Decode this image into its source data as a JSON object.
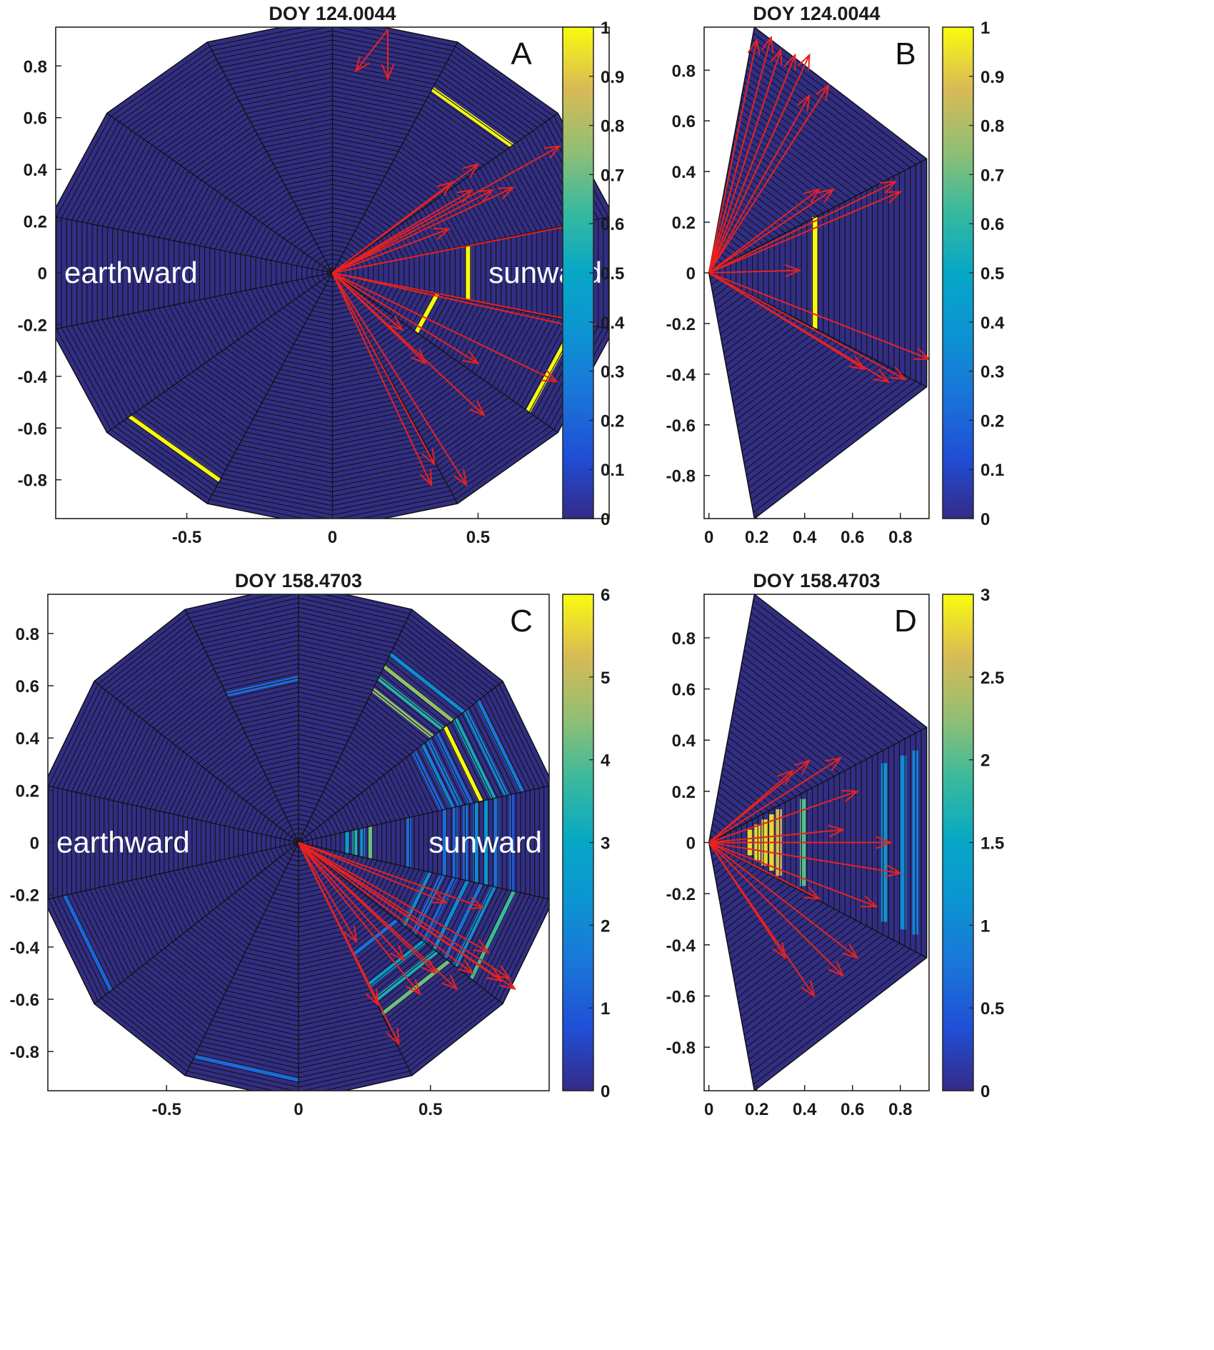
{
  "chart_data": [
    {
      "panel": "A",
      "type": "heatmap",
      "title": "DOY 124.0044",
      "panel_label": "A",
      "geometry": "polar-14-sector",
      "xlim": [
        -0.95,
        0.95
      ],
      "ylim": [
        -0.95,
        0.95
      ],
      "xticks": [
        -0.5,
        0,
        0.5
      ],
      "xtick_labels": [
        "-0.5",
        "0",
        "0.5"
      ],
      "yticks": [
        0.8,
        0.6,
        0.4,
        0.2,
        0,
        -0.2,
        -0.4,
        -0.6,
        -0.8
      ],
      "ytick_labels": [
        "0.8",
        "0.6",
        "0.4",
        "0.2",
        "0",
        "-0.2",
        "-0.4",
        "-0.6",
        "-0.8"
      ],
      "colorbar": {
        "min": 0,
        "max": 1,
        "ticks": [
          0,
          0.1,
          0.2,
          0.3,
          0.4,
          0.5,
          0.6,
          0.7,
          0.8,
          0.9,
          1
        ],
        "tick_labels": [
          "0",
          "0.1",
          "0.2",
          "0.3",
          "0.4",
          "0.5",
          "0.6",
          "0.7",
          "0.8",
          "0.9",
          "1"
        ]
      },
      "annotations": [
        "earthward",
        "sunward"
      ],
      "highlighted_cells": [
        {
          "sector": 2,
          "r": 0.78,
          "value": 1
        },
        {
          "sector": 0,
          "r": 0.47,
          "value": 1
        },
        {
          "sector": 13,
          "r": 0.36,
          "value": 1
        },
        {
          "sector": 13,
          "r": 0.85,
          "value": 1
        },
        {
          "sector": 9,
          "r": 0.88,
          "value": 1
        }
      ],
      "vectors": [
        {
          "tail": [
            0.19,
            0.94
          ],
          "head": [
            0.08,
            0.78
          ]
        },
        {
          "tail": [
            0.19,
            0.94
          ],
          "head": [
            0.19,
            0.75
          ]
        },
        {
          "tail": [
            0,
            0
          ],
          "head": [
            0.41,
            0.35
          ]
        },
        {
          "tail": [
            0,
            0
          ],
          "head": [
            0.5,
            0.42
          ]
        },
        {
          "tail": [
            0,
            0
          ],
          "head": [
            0.55,
            0.32
          ]
        },
        {
          "tail": [
            0,
            0
          ],
          "head": [
            0.62,
            0.33
          ]
        },
        {
          "tail": [
            0,
            0
          ],
          "head": [
            0.78,
            0.49
          ]
        },
        {
          "tail": [
            0,
            0
          ],
          "head": [
            0.85,
            0.19
          ]
        },
        {
          "tail": [
            0,
            0
          ],
          "head": [
            0.48,
            0.32
          ]
        },
        {
          "tail": [
            0,
            0
          ],
          "head": [
            0.4,
            0.17
          ]
        },
        {
          "tail": [
            0,
            0
          ],
          "head": [
            0.9,
            -0.2
          ]
        },
        {
          "tail": [
            0,
            0
          ],
          "head": [
            0.84,
            -0.21
          ]
        },
        {
          "tail": [
            0,
            0
          ],
          "head": [
            0.77,
            -0.42
          ]
        },
        {
          "tail": [
            0,
            0
          ],
          "head": [
            0.52,
            -0.55
          ]
        },
        {
          "tail": [
            0,
            0
          ],
          "head": [
            0.35,
            -0.74
          ]
        },
        {
          "tail": [
            0,
            0
          ],
          "head": [
            0.46,
            -0.82
          ]
        },
        {
          "tail": [
            0,
            0
          ],
          "head": [
            0.34,
            -0.82
          ]
        },
        {
          "tail": [
            0,
            0
          ],
          "head": [
            0.32,
            -0.35
          ]
        },
        {
          "tail": [
            0,
            0
          ],
          "head": [
            0.24,
            -0.22
          ]
        },
        {
          "tail": [
            0,
            0
          ],
          "head": [
            0.5,
            -0.35
          ]
        }
      ]
    },
    {
      "panel": "B",
      "type": "heatmap",
      "title": "DOY 124.0044",
      "panel_label": "B",
      "geometry": "sector-wedge",
      "xlim": [
        -0.02,
        0.92
      ],
      "ylim": [
        -0.97,
        0.97
      ],
      "xticks": [
        0,
        0.2,
        0.4,
        0.6,
        0.8
      ],
      "xtick_labels": [
        "0",
        "0.2",
        "0.4",
        "0.6",
        "0.8"
      ],
      "yticks": [
        0.8,
        0.6,
        0.4,
        0.2,
        0,
        -0.2,
        -0.4,
        -0.6,
        -0.8
      ],
      "ytick_labels": [
        "0.8",
        "0.6",
        "0.4",
        "0.2",
        "0",
        "-0.2",
        "-0.4",
        "-0.6",
        "-0.8"
      ],
      "colorbar": {
        "min": 0,
        "max": 1,
        "ticks": [
          0,
          0.1,
          0.2,
          0.3,
          0.4,
          0.5,
          0.6,
          0.7,
          0.8,
          0.9,
          1
        ],
        "tick_labels": [
          "0",
          "0.1",
          "0.2",
          "0.3",
          "0.4",
          "0.5",
          "0.6",
          "0.7",
          "0.8",
          "0.9",
          "1"
        ]
      },
      "highlighted_cells": [
        {
          "x": 0.43,
          "y_from": -0.22,
          "y_to": 0.22,
          "value": 1
        }
      ],
      "vectors": [
        {
          "tail": [
            0,
            0
          ],
          "head": [
            0.2,
            0.92
          ]
        },
        {
          "tail": [
            0,
            0
          ],
          "head": [
            0.26,
            0.93
          ]
        },
        {
          "tail": [
            0,
            0
          ],
          "head": [
            0.3,
            0.88
          ]
        },
        {
          "tail": [
            0,
            0
          ],
          "head": [
            0.36,
            0.86
          ]
        },
        {
          "tail": [
            0,
            0
          ],
          "head": [
            0.42,
            0.86
          ]
        },
        {
          "tail": [
            0,
            0
          ],
          "head": [
            0.5,
            0.74
          ]
        },
        {
          "tail": [
            0,
            0
          ],
          "head": [
            0.42,
            0.7
          ]
        },
        {
          "tail": [
            0,
            0
          ],
          "head": [
            0.46,
            0.33
          ]
        },
        {
          "tail": [
            0,
            0
          ],
          "head": [
            0.52,
            0.33
          ]
        },
        {
          "tail": [
            0,
            0
          ],
          "head": [
            0.78,
            0.36
          ]
        },
        {
          "tail": [
            0,
            0
          ],
          "head": [
            0.8,
            0.32
          ]
        },
        {
          "tail": [
            0,
            0
          ],
          "head": [
            0.38,
            0.01
          ]
        },
        {
          "tail": [
            0,
            0
          ],
          "head": [
            0.92,
            -0.34
          ]
        },
        {
          "tail": [
            0,
            0
          ],
          "head": [
            0.75,
            -0.43
          ]
        },
        {
          "tail": [
            0,
            0
          ],
          "head": [
            0.65,
            -0.38
          ]
        },
        {
          "tail": [
            0,
            0
          ],
          "head": [
            0.82,
            -0.42
          ]
        }
      ]
    },
    {
      "panel": "C",
      "type": "heatmap",
      "title": "DOY 158.4703",
      "panel_label": "C",
      "geometry": "polar-14-sector",
      "xlim": [
        -0.95,
        0.95
      ],
      "ylim": [
        -0.95,
        0.95
      ],
      "xticks": [
        -0.5,
        0,
        0.5
      ],
      "xtick_labels": [
        "-0.5",
        "0",
        "0.5"
      ],
      "yticks": [
        0.8,
        0.6,
        0.4,
        0.2,
        0,
        -0.2,
        -0.4,
        -0.6,
        -0.8
      ],
      "ytick_labels": [
        "0.8",
        "0.6",
        "0.4",
        "0.2",
        "0",
        "-0.2",
        "-0.4",
        "-0.6",
        "-0.8"
      ],
      "colorbar": {
        "min": 0,
        "max": 6,
        "ticks": [
          0,
          1,
          2,
          3,
          4,
          5,
          6
        ],
        "tick_labels": [
          "0",
          "1",
          "2",
          "3",
          "4",
          "5",
          "6"
        ]
      },
      "annotations": [
        "earthward",
        "sunward"
      ],
      "highlighted_cells": [
        {
          "sector": 0,
          "r": 0.18,
          "value": 2.5
        },
        {
          "sector": 0,
          "r": 0.21,
          "value": 3.5
        },
        {
          "sector": 0,
          "r": 0.24,
          "value": 2.2
        },
        {
          "sector": 0,
          "r": 0.27,
          "value": 4.2
        },
        {
          "sector": 0,
          "r": 0.42,
          "value": 1.4
        },
        {
          "sector": 0,
          "r": 0.56,
          "value": 1.3
        },
        {
          "sector": 0,
          "r": 0.6,
          "value": 1.3
        },
        {
          "sector": 0,
          "r": 0.64,
          "value": 1.4
        },
        {
          "sector": 0,
          "r": 0.68,
          "value": 2.0
        },
        {
          "sector": 0,
          "r": 0.72,
          "value": 2.3
        },
        {
          "sector": 0,
          "r": 0.76,
          "value": 1.4
        },
        {
          "sector": 0,
          "r": 0.82,
          "value": 1.0
        },
        {
          "sector": 1,
          "r": 0.55,
          "value": 1.2
        },
        {
          "sector": 1,
          "r": 0.59,
          "value": 1.8
        },
        {
          "sector": 1,
          "r": 0.62,
          "value": 1.6
        },
        {
          "sector": 1,
          "r": 0.66,
          "value": 1.3
        },
        {
          "sector": 1,
          "r": 0.7,
          "value": 6
        },
        {
          "sector": 1,
          "r": 0.75,
          "value": 3.2
        },
        {
          "sector": 1,
          "r": 0.8,
          "value": 2.0
        },
        {
          "sector": 1,
          "r": 0.86,
          "value": 1.6
        },
        {
          "sector": 2,
          "r": 0.64,
          "value": 4.5
        },
        {
          "sector": 2,
          "r": 0.69,
          "value": 3.5
        },
        {
          "sector": 2,
          "r": 0.74,
          "value": 4.5
        },
        {
          "sector": 2,
          "r": 0.79,
          "value": 2.0
        },
        {
          "sector": 13,
          "r": 0.5,
          "value": 2.0
        },
        {
          "sector": 13,
          "r": 0.55,
          "value": 1.4
        },
        {
          "sector": 13,
          "r": 0.6,
          "value": 1.2
        },
        {
          "sector": 13,
          "r": 0.65,
          "value": 2.0
        },
        {
          "sector": 13,
          "r": 0.7,
          "value": 1.4
        },
        {
          "sector": 13,
          "r": 0.75,
          "value": 2.2
        },
        {
          "sector": 13,
          "r": 0.83,
          "value": 3.8
        },
        {
          "sector": 12,
          "r": 0.6,
          "value": 2.8
        },
        {
          "sector": 12,
          "r": 0.66,
          "value": 3.3
        },
        {
          "sector": 12,
          "r": 0.72,
          "value": 4.2
        },
        {
          "sector": 12,
          "r": 0.47,
          "value": 1.4
        },
        {
          "sector": 4,
          "r": 0.62,
          "value": 1.4
        },
        {
          "sector": 10,
          "r": 0.9,
          "value": 1.3
        },
        {
          "sector": 8,
          "r": 0.9,
          "value": 1.2
        }
      ],
      "vectors": [
        {
          "tail": [
            0,
            0
          ],
          "head": [
            0.56,
            -0.23
          ]
        },
        {
          "tail": [
            0,
            0
          ],
          "head": [
            0.7,
            -0.25
          ]
        },
        {
          "tail": [
            0,
            0
          ],
          "head": [
            0.82,
            -0.56
          ]
        },
        {
          "tail": [
            0,
            0
          ],
          "head": [
            0.77,
            -0.53
          ]
        },
        {
          "tail": [
            0,
            0
          ],
          "head": [
            0.66,
            -0.5
          ]
        },
        {
          "tail": [
            0,
            0
          ],
          "head": [
            0.6,
            -0.56
          ]
        },
        {
          "tail": [
            0,
            0
          ],
          "head": [
            0.52,
            -0.5
          ]
        },
        {
          "tail": [
            0,
            0
          ],
          "head": [
            0.46,
            -0.58
          ]
        },
        {
          "tail": [
            0,
            0
          ],
          "head": [
            0.38,
            -0.77
          ]
        },
        {
          "tail": [
            0,
            0
          ],
          "head": [
            0.3,
            -0.62
          ]
        },
        {
          "tail": [
            0,
            0
          ],
          "head": [
            0.22,
            -0.38
          ]
        },
        {
          "tail": [
            0,
            0
          ],
          "head": [
            0.4,
            -0.45
          ]
        },
        {
          "tail": [
            0,
            0
          ],
          "head": [
            0.72,
            -0.42
          ]
        },
        {
          "tail": [
            0,
            0
          ],
          "head": [
            0.8,
            -0.52
          ]
        }
      ]
    },
    {
      "panel": "D",
      "type": "heatmap",
      "title": "DOY 158.4703",
      "panel_label": "D",
      "geometry": "sector-wedge",
      "xlim": [
        -0.02,
        0.92
      ],
      "ylim": [
        -0.97,
        0.97
      ],
      "xticks": [
        0,
        0.2,
        0.4,
        0.6,
        0.8
      ],
      "xtick_labels": [
        "0",
        "0.2",
        "0.4",
        "0.6",
        "0.8"
      ],
      "yticks": [
        0.8,
        0.6,
        0.4,
        0.2,
        0,
        -0.2,
        -0.4,
        -0.6,
        -0.8
      ],
      "ytick_labels": [
        "0.8",
        "0.6",
        "0.4",
        "0.2",
        "0",
        "-0.2",
        "-0.4",
        "-0.6",
        "-0.8"
      ],
      "colorbar": {
        "min": 0,
        "max": 3,
        "ticks": [
          0,
          0.5,
          1,
          1.5,
          2,
          2.5,
          3
        ],
        "tick_labels": [
          "0",
          "0.5",
          "1",
          "1.5",
          "2",
          "2.5",
          "3"
        ]
      },
      "highlighted_cells": [
        {
          "x": 0.16,
          "y_from": -0.05,
          "y_to": 0.05,
          "value": 2.8
        },
        {
          "x": 0.19,
          "y_from": -0.07,
          "y_to": 0.07,
          "value": 2.8
        },
        {
          "x": 0.22,
          "y_from": -0.09,
          "y_to": 0.09,
          "value": 2.8
        },
        {
          "x": 0.25,
          "y_from": -0.11,
          "y_to": 0.11,
          "value": 2.8
        },
        {
          "x": 0.28,
          "y_from": -0.13,
          "y_to": 0.13,
          "value": 2.6
        },
        {
          "x": 0.38,
          "y_from": -0.17,
          "y_to": 0.17,
          "value": 2.0
        },
        {
          "x": 0.72,
          "y_from": -0.31,
          "y_to": 0.31,
          "value": 1.1
        },
        {
          "x": 0.8,
          "y_from": -0.34,
          "y_to": 0.34,
          "value": 1.0
        },
        {
          "x": 0.85,
          "y_from": -0.36,
          "y_to": 0.36,
          "value": 0.9
        }
      ],
      "vectors": [
        {
          "tail": [
            0,
            0
          ],
          "head": [
            0.35,
            0.28
          ]
        },
        {
          "tail": [
            0,
            0
          ],
          "head": [
            0.42,
            0.32
          ]
        },
        {
          "tail": [
            0,
            0
          ],
          "head": [
            0.55,
            0.33
          ]
        },
        {
          "tail": [
            0,
            0
          ],
          "head": [
            0.62,
            0.2
          ]
        },
        {
          "tail": [
            0,
            0
          ],
          "head": [
            0.76,
            0.0
          ]
        },
        {
          "tail": [
            0,
            0
          ],
          "head": [
            0.8,
            -0.12
          ]
        },
        {
          "tail": [
            0,
            0
          ],
          "head": [
            0.7,
            -0.25
          ]
        },
        {
          "tail": [
            0,
            0
          ],
          "head": [
            0.62,
            -0.45
          ]
        },
        {
          "tail": [
            0,
            0
          ],
          "head": [
            0.56,
            -0.52
          ]
        },
        {
          "tail": [
            0,
            0
          ],
          "head": [
            0.44,
            -0.6
          ]
        },
        {
          "tail": [
            0,
            0
          ],
          "head": [
            0.32,
            -0.45
          ]
        },
        {
          "tail": [
            0,
            0
          ],
          "head": [
            0.46,
            -0.22
          ]
        },
        {
          "tail": [
            0,
            0
          ],
          "head": [
            0.56,
            0.05
          ]
        }
      ]
    }
  ]
}
